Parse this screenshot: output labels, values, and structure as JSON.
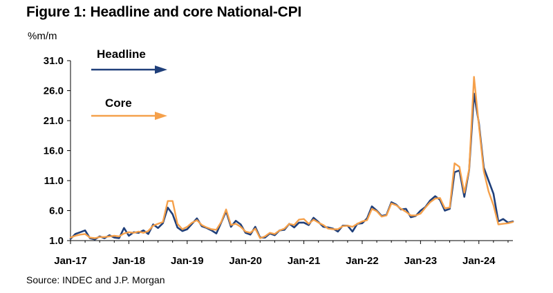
{
  "title": "Figure 1: Headline and core National-CPI",
  "unit_label": "%m/m",
  "source": "Source: INDEC and J.P. Morgan",
  "colors": {
    "headline": "#1f3f7a",
    "core": "#f5a04a",
    "axis": "#000000"
  },
  "chart_data": {
    "type": "line",
    "title": "Figure 1: Headline and core National-CPI",
    "ylabel": "%m/m",
    "xlabel": "",
    "ylim": [
      1.0,
      31.0
    ],
    "yticks": [
      "31.0",
      "26.0",
      "21.0",
      "16.0",
      "11.0",
      "6.0",
      "1.0"
    ],
    "xticks": [
      "Jan-17",
      "Jan-18",
      "Jan-19",
      "Jan-20",
      "Jan-21",
      "Jan-22",
      "Jan-23",
      "Jan-24"
    ],
    "x_start": "Jan-17",
    "x_end": "Aug-24",
    "grid": false,
    "legend": "top-left",
    "series": [
      {
        "name": "Headline",
        "values": [
          1.3,
          2.1,
          2.4,
          2.7,
          1.4,
          1.2,
          1.7,
          1.4,
          1.9,
          1.5,
          1.4,
          3.1,
          1.8,
          2.4,
          2.3,
          2.7,
          2.1,
          3.7,
          3.1,
          3.9,
          6.5,
          5.4,
          3.2,
          2.6,
          2.9,
          3.8,
          4.7,
          3.4,
          3.1,
          2.7,
          2.2,
          4.0,
          5.9,
          3.3,
          4.3,
          3.7,
          2.3,
          2.0,
          3.3,
          1.5,
          1.5,
          2.2,
          1.9,
          2.7,
          2.8,
          3.8,
          3.2,
          4.0,
          4.0,
          3.6,
          4.8,
          4.1,
          3.3,
          3.2,
          3.0,
          2.5,
          3.5,
          3.5,
          2.5,
          3.8,
          3.9,
          4.7,
          6.7,
          6.0,
          5.1,
          5.3,
          7.4,
          7.0,
          6.2,
          6.3,
          4.9,
          5.1,
          6.0,
          6.6,
          7.7,
          8.4,
          7.8,
          6.0,
          6.3,
          12.4,
          12.7,
          8.3,
          12.8,
          25.5,
          20.6,
          13.2,
          11.0,
          8.8,
          4.2,
          4.6,
          4.0,
          4.2
        ]
      },
      {
        "name": "Core",
        "values": [
          1.5,
          1.8,
          2.0,
          2.1,
          1.5,
          1.4,
          1.6,
          1.6,
          1.7,
          1.8,
          1.7,
          2.2,
          2.4,
          2.3,
          2.5,
          2.3,
          2.6,
          3.5,
          3.8,
          4.1,
          7.6,
          7.6,
          3.8,
          2.9,
          3.3,
          4.0,
          4.4,
          3.6,
          3.2,
          2.9,
          2.8,
          4.1,
          6.2,
          3.6,
          3.8,
          3.3,
          2.5,
          2.3,
          3.0,
          1.4,
          1.7,
          2.3,
          2.1,
          2.7,
          3.0,
          3.8,
          3.6,
          4.5,
          4.6,
          3.8,
          4.5,
          4.0,
          3.6,
          3.0,
          2.9,
          2.9,
          3.4,
          3.5,
          3.3,
          3.8,
          4.2,
          4.4,
          6.3,
          5.9,
          5.0,
          5.2,
          7.2,
          6.9,
          6.3,
          5.8,
          5.2,
          5.2,
          5.5,
          6.5,
          7.4,
          8.0,
          8.1,
          6.4,
          6.5,
          13.9,
          13.3,
          9.0,
          12.9,
          28.3,
          20.2,
          12.6,
          9.2,
          6.9,
          3.7,
          3.8,
          3.9,
          4.1
        ]
      }
    ]
  },
  "legend": {
    "headline_label": "Headline",
    "core_label": "Core"
  }
}
